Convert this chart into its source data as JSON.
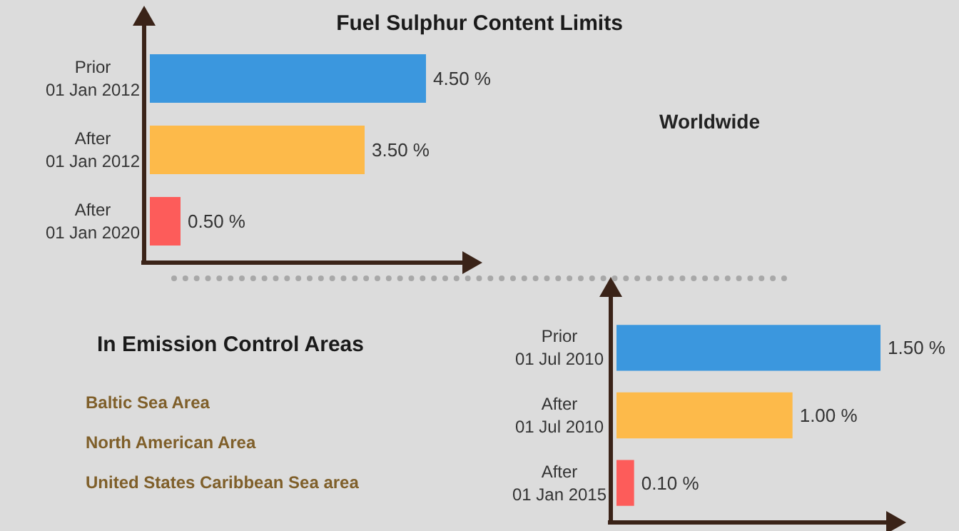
{
  "chart_data": [
    {
      "type": "bar",
      "orientation": "horizontal",
      "title": "Fuel Sulphur Content Limits",
      "annotations": [
        "Worldwide"
      ],
      "categories": [
        "Prior\n01 Jan 2012",
        "After\n01 Jan 2012",
        "After\n01 Jan 2020"
      ],
      "values": [
        4.5,
        3.5,
        0.5
      ],
      "value_labels": [
        "4.50 %",
        "3.50 %",
        "0.50 %"
      ],
      "colors": [
        "#3b97de",
        "#fdba4a",
        "#fd5c5a"
      ]
    },
    {
      "type": "bar",
      "orientation": "horizontal",
      "annotations": [
        "In Emission Control Areas",
        "Baltic Sea Area",
        "North American Area",
        "United States Caribbean Sea area"
      ],
      "categories": [
        "Prior\n01 Jul 2010",
        "After\n01 Jul 2010",
        "After\n01 Jan 2015"
      ],
      "values": [
        1.5,
        1.0,
        0.1
      ],
      "value_labels": [
        "1.50 %",
        "1.00 %",
        "0.10 %"
      ],
      "colors": [
        "#3b97de",
        "#fdba4a",
        "#fd5c5a"
      ]
    }
  ]
}
